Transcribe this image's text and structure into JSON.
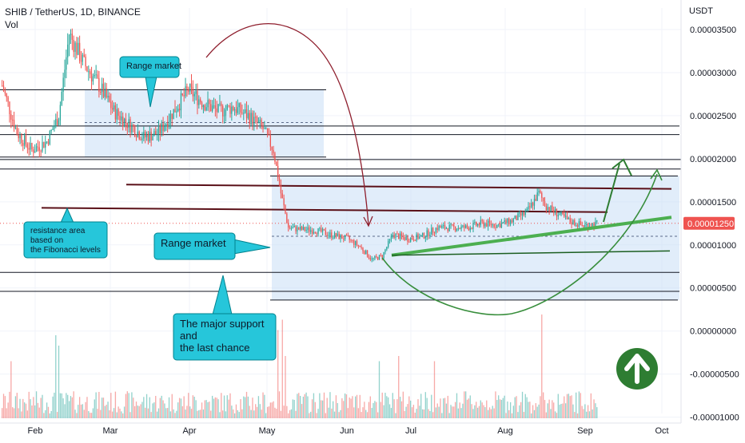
{
  "header": {
    "title": "SHIB / TetherUS, 1D, BINANCE",
    "volume_label": "Vol"
  },
  "axis_currency": "USDT",
  "colors": {
    "bull": "#26a69a",
    "bear": "#ef5350",
    "range_fill": "#c9def5",
    "callout_fill": "#26c6da",
    "trend_green": "#4caf50",
    "arc_red": "#8e1d2c",
    "price_badge": "#ef5350",
    "up_badge": "#2e7d32"
  },
  "chart_data": {
    "type": "candlestick",
    "title": "SHIB / TetherUS, 1D, BINANCE",
    "x_ticks": [
      "Feb",
      "Mar",
      "Apr",
      "May",
      "Jun",
      "Jul",
      "Aug",
      "Sep",
      "Oct"
    ],
    "y_ticks": [
      "0.00003500",
      "0.00003000",
      "0.00002500",
      "0.00002000",
      "0.00001500",
      "0.00001000",
      "0.00000500",
      "0.00000000",
      "-0.00000500",
      "-0.00001000"
    ],
    "ylim": [
      -1.05e-05,
      3.75e-05
    ],
    "last_price_label": "0.00001250",
    "price_path_anchors": [
      [
        0,
        2.85e-05
      ],
      [
        10,
        2.3e-05
      ],
      [
        20,
        2.1e-05
      ],
      [
        30,
        2.2e-05
      ],
      [
        38,
        2.5e-05
      ],
      [
        45,
        3.45e-05
      ],
      [
        55,
        3.1e-05
      ],
      [
        65,
        2.85e-05
      ],
      [
        75,
        2.55e-05
      ],
      [
        85,
        2.4e-05
      ],
      [
        95,
        2.25e-05
      ],
      [
        105,
        2.3e-05
      ],
      [
        115,
        2.55e-05
      ],
      [
        125,
        2.8e-05
      ],
      [
        135,
        2.65e-05
      ],
      [
        145,
        2.55e-05
      ],
      [
        155,
        2.6e-05
      ],
      [
        165,
        2.5e-05
      ],
      [
        175,
        2.35e-05
      ],
      [
        182,
        2.1e-05
      ],
      [
        187,
        1.6e-05
      ],
      [
        192,
        1.2e-05
      ],
      [
        200,
        1.18e-05
      ],
      [
        210,
        1.17e-05
      ],
      [
        220,
        1.12e-05
      ],
      [
        232,
        1.07e-05
      ],
      [
        240,
        9.8e-06
      ],
      [
        248,
        8.3e-06
      ],
      [
        255,
        8.7e-06
      ],
      [
        262,
        1.12e-05
      ],
      [
        272,
        1.07e-05
      ],
      [
        282,
        1.1e-05
      ],
      [
        292,
        1.2e-05
      ],
      [
        302,
        1.2e-05
      ],
      [
        312,
        1.2e-05
      ],
      [
        322,
        1.25e-05
      ],
      [
        332,
        1.23e-05
      ],
      [
        342,
        1.28e-05
      ],
      [
        352,
        1.38e-05
      ],
      [
        360,
        1.6e-05
      ],
      [
        365,
        1.45e-05
      ],
      [
        372,
        1.37e-05
      ],
      [
        380,
        1.28e-05
      ],
      [
        390,
        1.22e-05
      ],
      [
        400,
        1.25e-05
      ]
    ],
    "volume_spikes": [
      [
        6,
        0.55
      ],
      [
        36,
        0.8
      ],
      [
        38,
        0.7
      ],
      [
        185,
        0.85
      ],
      [
        188,
        0.95
      ],
      [
        190,
        0.6
      ],
      [
        253,
        0.55
      ],
      [
        266,
        0.6
      ],
      [
        290,
        0.55
      ],
      [
        362,
        1.0
      ]
    ],
    "horizontal_levels": [
      {
        "from": 0,
        "to": 408,
        "y": 2.8e-05,
        "color": "#131722"
      },
      {
        "from": 0,
        "to": 408,
        "y": 2.02e-05,
        "color": "#131722"
      },
      {
        "from": 0,
        "to": 850,
        "y": 2.38e-05,
        "color": "#131722"
      },
      {
        "from": 0,
        "to": 850,
        "y": 2.28e-05,
        "color": "#131722"
      },
      {
        "from": 0,
        "to": 858,
        "y": 1.99e-05,
        "color": "#131722"
      },
      {
        "from": 0,
        "to": 858,
        "y": 1.88e-05,
        "color": "#131722"
      },
      {
        "from": 338,
        "to": 848,
        "y": 1.8e-05,
        "color": "#131722"
      },
      {
        "from": 0,
        "to": 850,
        "y": 6.8e-06,
        "color": "#131722"
      },
      {
        "from": 0,
        "to": 850,
        "y": 4.6e-06,
        "color": "#131722"
      },
      {
        "from": 338,
        "to": 848,
        "y": 3.6e-06,
        "color": "#131722"
      }
    ],
    "resistance_lines": [
      {
        "from": 158,
        "to": 840,
        "y1": 1.7e-05,
        "y2": 1.65e-05
      },
      {
        "from": 52,
        "to": 760,
        "y1": 1.43e-05,
        "y2": 1.38e-05
      }
    ],
    "range_boxes": [
      {
        "x1": 106,
        "x2": 405,
        "ytop": 2.8e-05,
        "ybot": 2.02e-05
      },
      {
        "x1": 340,
        "x2": 850,
        "ytop": 1.8e-05,
        "ybot": 3.6e-06
      }
    ],
    "annotations": [
      {
        "id": "range1",
        "text": "Range market",
        "kind": "callout"
      },
      {
        "id": "range2",
        "text": "Range market",
        "kind": "callout"
      },
      {
        "id": "resistance",
        "text": "resistance area based on the Fibonacci levels",
        "lines": [
          "resistance area",
          "based on",
          "the Fibonacci levels"
        ],
        "kind": "callout"
      },
      {
        "id": "support",
        "text": "The major support and the last chance",
        "lines": [
          "The major support",
          "and",
          "the last chance"
        ],
        "kind": "callout"
      }
    ]
  }
}
